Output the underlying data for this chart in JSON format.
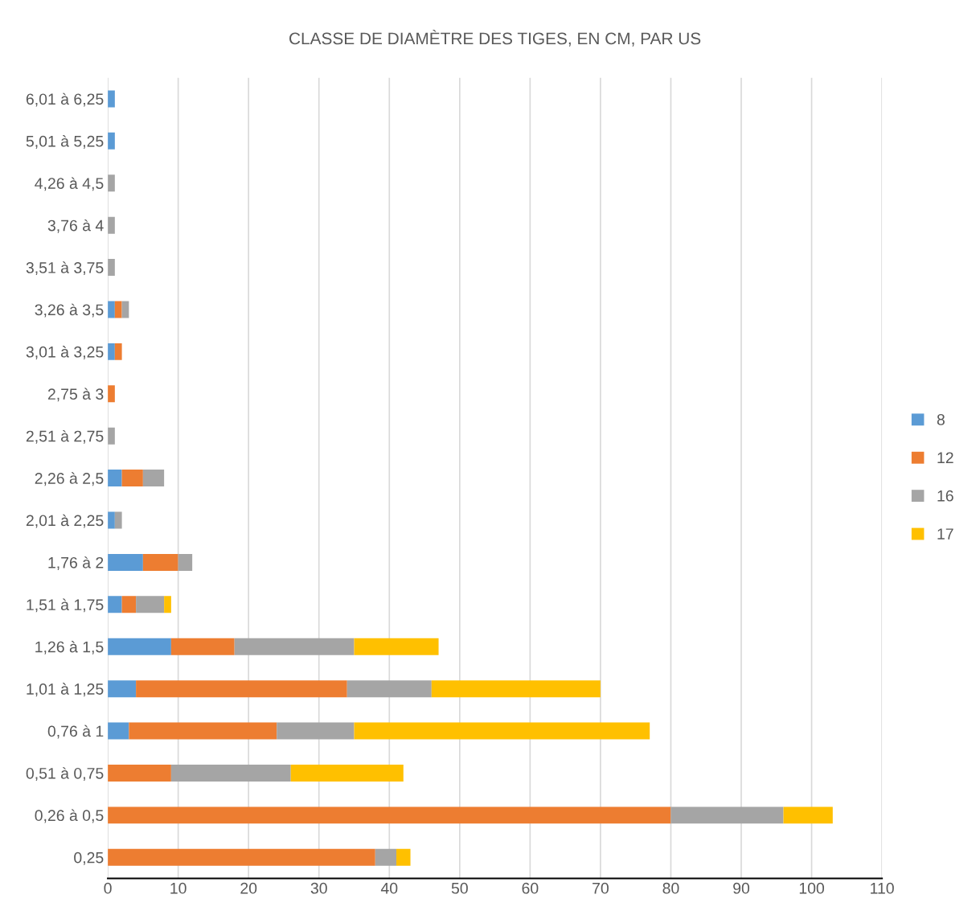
{
  "chart_data": {
    "type": "bar",
    "orientation": "horizontal",
    "stacked": true,
    "title": "CLASSE DE DIAMÈTRE DES TIGES, EN CM, PAR US",
    "categories": [
      "6,01 à 6,25",
      "5,01 à 5,25",
      "4,26 à 4,5",
      "3,76 à 4",
      "3,51 à 3,75",
      "3,26 à 3,5",
      "3,01 à 3,25",
      "2,75 à 3",
      "2,51 à 2,75",
      "2,26 à 2,5",
      "2,01 à 2,25",
      "1,76 à 2",
      "1,51 à 1,75",
      "1,26 à 1,5",
      "1,01 à 1,25",
      "0,76 à 1",
      "0,51 à 0,75",
      "0,26 à 0,5",
      "0,25"
    ],
    "series": [
      {
        "name": "8",
        "color": "#5b9bd5",
        "values": [
          1,
          1,
          0,
          0,
          0,
          1,
          1,
          0,
          0,
          2,
          1,
          5,
          2,
          9,
          4,
          3,
          0,
          0,
          0
        ]
      },
      {
        "name": "12",
        "color": "#ed7d31",
        "values": [
          0,
          0,
          0,
          0,
          0,
          1,
          1,
          1,
          0,
          3,
          0,
          5,
          2,
          9,
          30,
          21,
          9,
          80,
          38
        ]
      },
      {
        "name": "16",
        "color": "#a5a5a5",
        "values": [
          0,
          0,
          1,
          1,
          1,
          1,
          0,
          0,
          1,
          3,
          1,
          2,
          4,
          17,
          12,
          11,
          17,
          16,
          3
        ]
      },
      {
        "name": "17",
        "color": "#ffc000",
        "values": [
          0,
          0,
          0,
          0,
          0,
          0,
          0,
          0,
          0,
          0,
          0,
          0,
          1,
          12,
          24,
          42,
          16,
          7,
          2
        ]
      }
    ],
    "xlim": [
      0,
      110
    ],
    "xticks": [
      0,
      10,
      20,
      30,
      40,
      50,
      60,
      70,
      80,
      90,
      100,
      110
    ],
    "grid": "x",
    "legend": "right"
  }
}
